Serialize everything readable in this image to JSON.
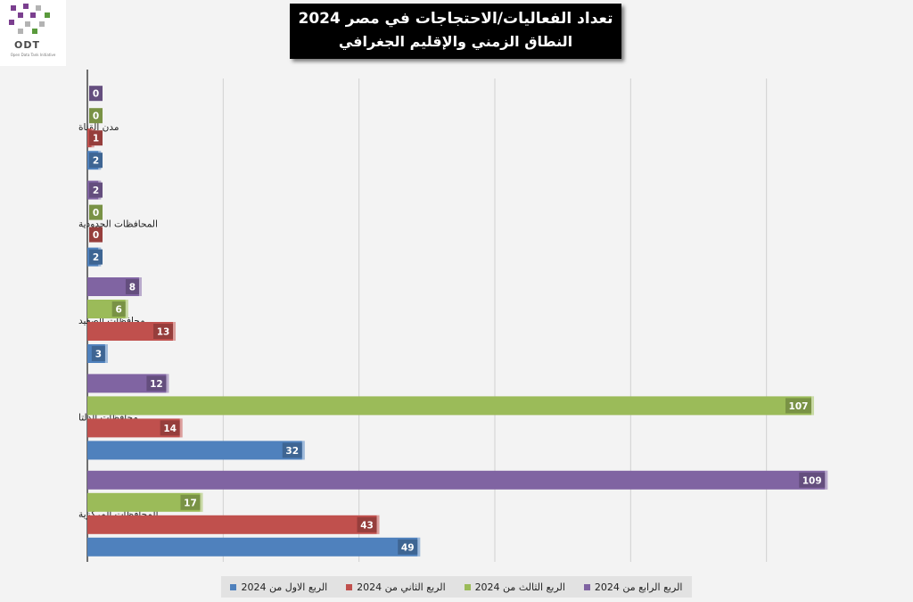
{
  "logo": {
    "text": "ODT",
    "tagline": "Open Data Tank Initiative"
  },
  "chart_data": {
    "type": "bar",
    "orientation": "horizontal",
    "title_line1": "تعداد الفعاليات/الاحتجاجات في مصر 2024",
    "title_line2": "النطاق الزمني والإقليم الجغرافي",
    "categories": [
      "مدن القناة",
      "المحافظات الحدودية",
      "محافظات الصعيد",
      "محافظات الدلتا",
      "المحافظات المركزية"
    ],
    "series": [
      {
        "name": "الربع الرابع من 2024",
        "color": "#8064a2",
        "values": [
          0,
          2,
          8,
          12,
          109
        ]
      },
      {
        "name": "الربع الثالث من 2024",
        "color": "#9bbb59",
        "values": [
          0,
          0,
          6,
          107,
          17
        ]
      },
      {
        "name": "الربع الثاني من 2024",
        "color": "#c0504d",
        "values": [
          1,
          0,
          13,
          14,
          43
        ]
      },
      {
        "name": "الربع الاول من 2024",
        "color": "#4f81bd",
        "values": [
          2,
          2,
          3,
          32,
          49
        ]
      }
    ],
    "xlim": [
      0,
      120
    ],
    "grid": true,
    "legend_position": "bottom"
  },
  "legend_order": [
    3,
    2,
    1,
    0
  ]
}
